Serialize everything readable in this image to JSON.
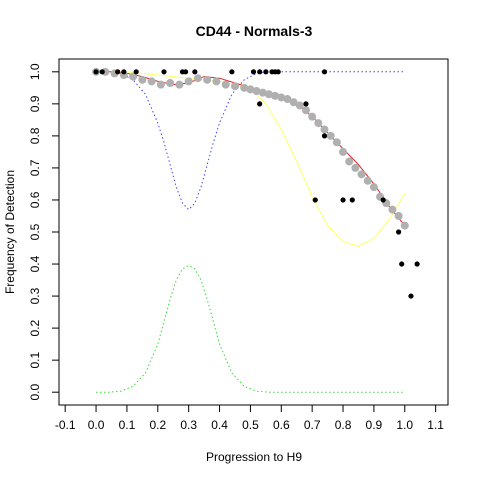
{
  "chart_data": {
    "type": "scatter",
    "title": "CD44 - Normals-3",
    "xlabel": "Progression to H9",
    "ylabel": "Frequency of Detection",
    "xlim": [
      -0.12,
      1.14
    ],
    "ylim": [
      -0.04,
      1.04
    ],
    "xticks": [
      "-0.1",
      "0.0",
      "0.1",
      "0.2",
      "0.3",
      "0.4",
      "0.5",
      "0.6",
      "0.7",
      "0.8",
      "0.9",
      "1.0",
      "1.1"
    ],
    "yticks": [
      "0.0",
      "0.1",
      "0.2",
      "0.3",
      "0.4",
      "0.5",
      "0.6",
      "0.7",
      "0.8",
      "0.9",
      "1.0"
    ],
    "grid": false,
    "colors": {
      "black_points": "#000000",
      "gray_points": "#b0b0b0",
      "red_fit": "#e02020",
      "yellow_curve": "#ffff66",
      "blue_dotted": "#4444ff",
      "green_dotted": "#33dd33"
    },
    "series": [
      {
        "style": "black-points",
        "x": [
          0.0,
          0.02,
          0.07,
          0.09,
          0.13,
          0.22,
          0.28,
          0.29,
          0.32,
          0.44,
          0.51,
          0.53,
          0.55,
          0.57,
          0.58,
          0.59,
          0.74,
          0.53,
          0.68,
          0.71,
          0.74,
          0.8,
          0.83,
          0.93,
          0.98,
          0.99,
          1.02,
          1.04
        ],
        "y": [
          1.0,
          1.0,
          1.0,
          1.0,
          1.0,
          1.0,
          1.0,
          1.0,
          1.0,
          1.0,
          1.0,
          1.0,
          1.0,
          1.0,
          1.0,
          1.0,
          1.0,
          0.9,
          0.9,
          0.6,
          0.8,
          0.6,
          0.6,
          0.6,
          0.5,
          0.4,
          0.3,
          0.4
        ]
      },
      {
        "style": "gray-points",
        "x": [
          0.0,
          0.03,
          0.06,
          0.09,
          0.12,
          0.15,
          0.18,
          0.21,
          0.24,
          0.27,
          0.3,
          0.33,
          0.36,
          0.39,
          0.42,
          0.45,
          0.48,
          0.5,
          0.52,
          0.54,
          0.56,
          0.58,
          0.6,
          0.62,
          0.64,
          0.66,
          0.68,
          0.7,
          0.72,
          0.74,
          0.76,
          0.78,
          0.8,
          0.82,
          0.84,
          0.86,
          0.88,
          0.9,
          0.92,
          0.94,
          0.96,
          0.98,
          1.0
        ],
        "y": [
          1.0,
          1.0,
          0.995,
          0.99,
          0.985,
          0.975,
          0.97,
          0.96,
          0.965,
          0.96,
          0.97,
          0.98,
          0.975,
          0.97,
          0.96,
          0.955,
          0.95,
          0.945,
          0.94,
          0.935,
          0.93,
          0.925,
          0.92,
          0.915,
          0.905,
          0.895,
          0.88,
          0.86,
          0.84,
          0.82,
          0.8,
          0.78,
          0.75,
          0.72,
          0.7,
          0.68,
          0.66,
          0.64,
          0.61,
          0.59,
          0.57,
          0.55,
          0.52
        ]
      },
      {
        "style": "red-fit",
        "x": [
          0.0,
          0.05,
          0.1,
          0.15,
          0.2,
          0.25,
          0.3,
          0.35,
          0.4,
          0.45,
          0.5,
          0.55,
          0.6,
          0.65,
          0.7,
          0.75,
          0.8,
          0.85,
          0.9,
          0.95,
          1.0
        ],
        "y": [
          1.0,
          1.0,
          0.995,
          0.985,
          0.97,
          0.96,
          0.965,
          0.985,
          0.98,
          0.965,
          0.95,
          0.935,
          0.92,
          0.9,
          0.86,
          0.81,
          0.76,
          0.71,
          0.65,
          0.58,
          0.52
        ]
      },
      {
        "style": "yellow-curve",
        "x": [
          0.0,
          0.05,
          0.1,
          0.15,
          0.2,
          0.25,
          0.3,
          0.35,
          0.4,
          0.45,
          0.5,
          0.55,
          0.6,
          0.65,
          0.7,
          0.75,
          0.8,
          0.85,
          0.9,
          0.95,
          1.0
        ],
        "y": [
          1.0,
          1.0,
          1.0,
          0.995,
          0.99,
          0.985,
          0.98,
          0.975,
          0.97,
          0.96,
          0.945,
          0.9,
          0.82,
          0.72,
          0.61,
          0.52,
          0.47,
          0.455,
          0.48,
          0.54,
          0.62
        ]
      },
      {
        "style": "blue-dotted",
        "x": [
          0.0,
          0.04,
          0.08,
          0.12,
          0.16,
          0.2,
          0.22,
          0.24,
          0.26,
          0.28,
          0.3,
          0.32,
          0.34,
          0.36,
          0.38,
          0.4,
          0.44,
          0.48,
          0.52,
          0.56,
          0.6,
          0.7,
          0.8,
          0.9,
          1.0
        ],
        "y": [
          1.0,
          1.0,
          0.995,
          0.975,
          0.93,
          0.84,
          0.78,
          0.71,
          0.64,
          0.59,
          0.57,
          0.59,
          0.64,
          0.71,
          0.78,
          0.84,
          0.93,
          0.975,
          0.995,
          1.0,
          1.0,
          1.0,
          1.0,
          1.0,
          1.0
        ]
      },
      {
        "style": "green-dotted",
        "x": [
          0.0,
          0.04,
          0.08,
          0.12,
          0.16,
          0.2,
          0.22,
          0.24,
          0.26,
          0.28,
          0.3,
          0.32,
          0.34,
          0.36,
          0.38,
          0.4,
          0.44,
          0.48,
          0.52,
          0.56,
          0.6,
          0.7,
          0.8,
          0.9,
          1.0
        ],
        "y": [
          0.0,
          0.0,
          0.003,
          0.018,
          0.06,
          0.15,
          0.22,
          0.29,
          0.35,
          0.385,
          0.395,
          0.385,
          0.35,
          0.29,
          0.22,
          0.15,
          0.06,
          0.018,
          0.003,
          0.0,
          0.0,
          0.0,
          0.0,
          0.0,
          0.0
        ]
      }
    ]
  }
}
